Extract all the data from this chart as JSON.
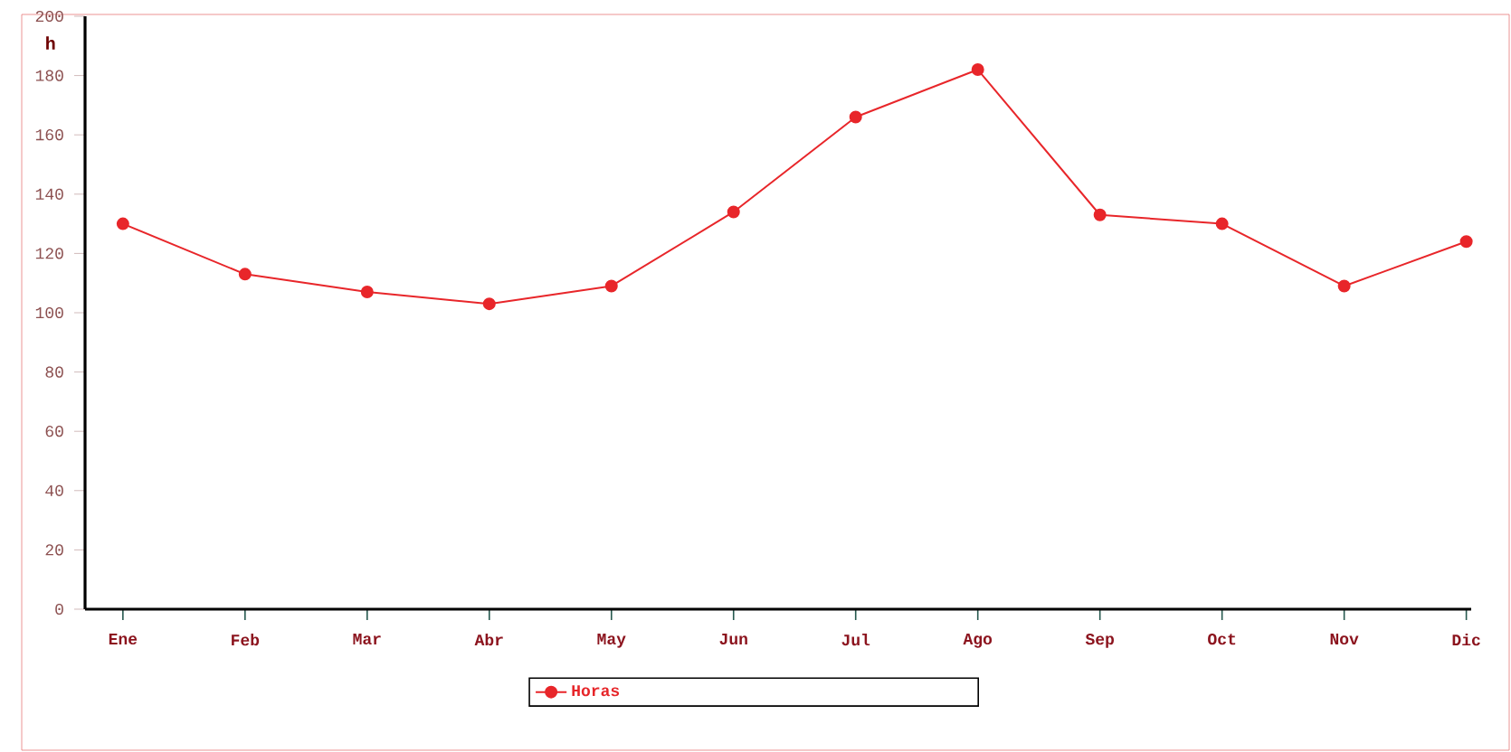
{
  "chart_data": {
    "type": "line",
    "ylabel": "h",
    "categories": [
      "Ene",
      "Feb",
      "Mar",
      "Abr",
      "May",
      "Jun",
      "Jul",
      "Ago",
      "Sep",
      "Oct",
      "Nov",
      "Dic"
    ],
    "series": [
      {
        "name": "Horas",
        "color": "#e8262a",
        "values": [
          130,
          113,
          107,
          103,
          109,
          134,
          166,
          182,
          133,
          130,
          109,
          124
        ]
      }
    ],
    "ylim": [
      0,
      200
    ],
    "yticks": [
      0,
      20,
      40,
      60,
      80,
      100,
      120,
      140,
      160,
      180,
      200
    ],
    "marker": "circle",
    "line_style": "solid",
    "legend": "bottom",
    "grid": false
  }
}
